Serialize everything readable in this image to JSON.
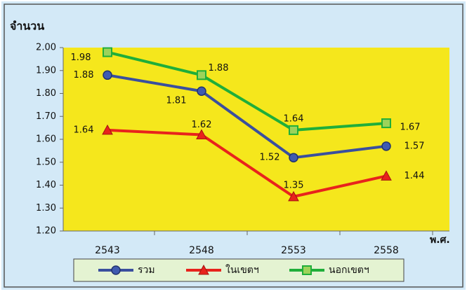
{
  "chart_data": {
    "type": "line",
    "y_label": "จำนวน",
    "x_label": "พ.ศ.",
    "categories": [
      "2543",
      "2548",
      "2553",
      "2558"
    ],
    "series": [
      {
        "name": "รวม",
        "color": "#3a4f9e",
        "marker": "circle",
        "values": [
          1.88,
          1.81,
          1.52,
          1.57
        ]
      },
      {
        "name": "ในเขตฯ",
        "color": "#e8231c",
        "marker": "triangle",
        "values": [
          1.64,
          1.62,
          1.35,
          1.44
        ]
      },
      {
        "name": "นอกเขตฯ",
        "color": "#1fae3a",
        "marker": "square",
        "values": [
          1.98,
          1.88,
          1.64,
          1.67
        ]
      }
    ],
    "ylim": [
      1.2,
      2.0
    ],
    "yticks": [
      {
        "value": 1.2,
        "label": "1.20"
      },
      {
        "value": 1.3,
        "label": "1.30"
      },
      {
        "value": 1.4,
        "label": "1.40"
      },
      {
        "value": 1.5,
        "label": "1.50"
      },
      {
        "value": 1.6,
        "label": "1.60"
      },
      {
        "value": 1.7,
        "label": "1.70"
      },
      {
        "value": 1.8,
        "label": "1.80"
      },
      {
        "value": 1.9,
        "label": "1.90"
      },
      {
        "value": 2.0,
        "label": "2.00"
      }
    ],
    "plot_background": "#f5e71c",
    "background": "#d3e9f7",
    "legend_background": "#e4f3d2"
  }
}
